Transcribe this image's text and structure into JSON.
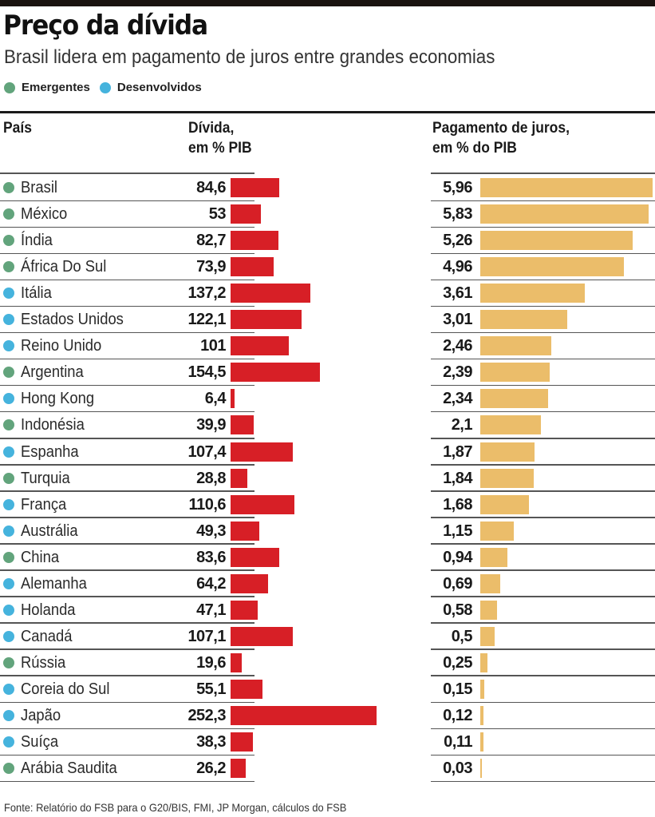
{
  "header": {
    "title": "Preço da dívida",
    "subtitle": "Brasil lidera em pagamento de juros entre grandes economias"
  },
  "legend": [
    {
      "label": "Emergentes",
      "color": "#62a47c"
    },
    {
      "label": "Desenvolvidos",
      "color": "#45b3dd"
    }
  ],
  "columns": {
    "country": "País",
    "debt_line1": "Dívida,",
    "debt_line2": "em % PIB",
    "interest_line1": "Pagamento de juros,",
    "interest_line2": "em % do PIB"
  },
  "colors": {
    "debt_bar": "#d71f26",
    "interest_bar": "#ebbd6a"
  },
  "chart_data": {
    "type": "bar",
    "title": "Preço da dívida",
    "subtitle": "Brasil lidera em pagamento de juros entre grandes economias",
    "orientation": "horizontal",
    "categories": [
      "Brasil",
      "México",
      "Índia",
      "África Do Sul",
      "Itália",
      "Estados Unidos",
      "Reino Unido",
      "Argentina",
      "Hong Kong",
      "Indonésia",
      "Espanha",
      "Turquia",
      "França",
      "Austrália",
      "China",
      "Alemanha",
      "Holanda",
      "Canadá",
      "Rússia",
      "Coreia do Sul",
      "Japão",
      "Suíça",
      "Arábia Saudita"
    ],
    "groups": [
      "Emergentes",
      "Emergentes",
      "Emergentes",
      "Emergentes",
      "Desenvolvidos",
      "Desenvolvidos",
      "Desenvolvidos",
      "Emergentes",
      "Desenvolvidos",
      "Emergentes",
      "Desenvolvidos",
      "Emergentes",
      "Desenvolvidos",
      "Desenvolvidos",
      "Emergentes",
      "Desenvolvidos",
      "Desenvolvidos",
      "Desenvolvidos",
      "Emergentes",
      "Desenvolvidos",
      "Desenvolvidos",
      "Desenvolvidos",
      "Emergentes"
    ],
    "series": [
      {
        "name": "Dívida, em % PIB",
        "values": [
          84.6,
          53,
          82.7,
          73.9,
          137.2,
          122.1,
          101,
          154.5,
          6.4,
          39.9,
          107.4,
          28.8,
          110.6,
          49.3,
          83.6,
          64.2,
          47.1,
          107.1,
          19.6,
          55.1,
          252.3,
          38.3,
          26.2
        ],
        "labels": [
          "84,6",
          "53",
          "82,7",
          "73,9",
          "137,2",
          "122,1",
          "101",
          "154,5",
          "6,4",
          "39,9",
          "107,4",
          "28,8",
          "110,6",
          "49,3",
          "83,6",
          "64,2",
          "47,1",
          "107,1",
          "19,6",
          "55,1",
          "252,3",
          "38,3",
          "26,2"
        ]
      },
      {
        "name": "Pagamento de juros, em % do PIB",
        "values": [
          5.96,
          5.83,
          5.26,
          4.96,
          3.61,
          3.01,
          2.46,
          2.39,
          2.34,
          2.1,
          1.87,
          1.84,
          1.68,
          1.15,
          0.94,
          0.69,
          0.58,
          0.5,
          0.25,
          0.15,
          0.12,
          0.11,
          0.03
        ],
        "labels": [
          "5,96",
          "5,83",
          "5,26",
          "4,96",
          "3,61",
          "3,01",
          "2,46",
          "2,39",
          "2,34",
          "2,1",
          "1,87",
          "1,84",
          "1,68",
          "1,15",
          "0,94",
          "0,69",
          "0,58",
          "0,5",
          "0,25",
          "0,15",
          "0,12",
          "0,11",
          "0,03"
        ]
      }
    ],
    "xlim_debt": [
      0,
      252.3
    ],
    "xlim_interest": [
      0,
      5.96
    ],
    "grid": false,
    "legend_position": "top-left"
  },
  "footnote": "Fonte: Relatório do FSB para o G20/BIS, FMI, JP Morgan, cálculos do FSB"
}
